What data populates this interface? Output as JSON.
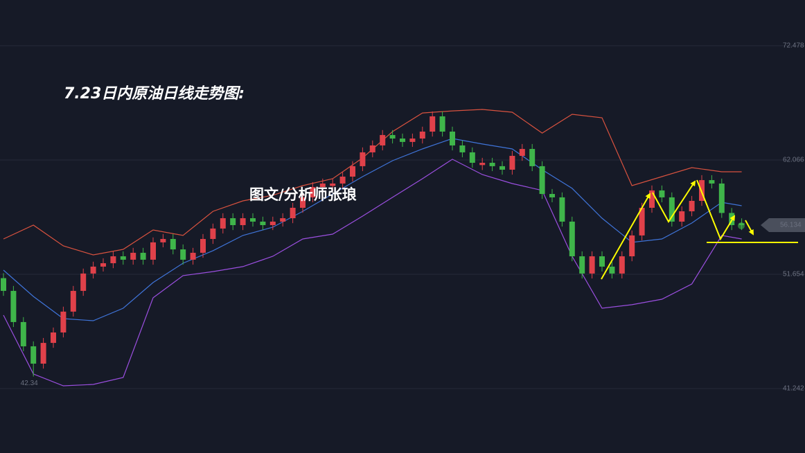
{
  "chart_data": {
    "type": "candlestick",
    "title": "7.23日内原油日线走势图:",
    "subtitle": "图文/分析师张琅",
    "categories": [
      null,
      null,
      null,
      null,
      null,
      null,
      null,
      null,
      null,
      null,
      null,
      null,
      null,
      null,
      null,
      null,
      null,
      null,
      null,
      null,
      null,
      null,
      null,
      null,
      null,
      null,
      null,
      null,
      null,
      null,
      null,
      null,
      null,
      null,
      null,
      null,
      null,
      null,
      null,
      null,
      null,
      null,
      null,
      null,
      null,
      null,
      null,
      null,
      null,
      null,
      null,
      null,
      null,
      null,
      null,
      null,
      null,
      null,
      null,
      null,
      null,
      null,
      null,
      null,
      null,
      null,
      null,
      null,
      null,
      null,
      null,
      null,
      null,
      null,
      null
    ],
    "open": [
      51.3,
      50.14,
      47.3,
      45.09,
      43.51,
      45.4,
      46.35,
      48.25,
      50.14,
      51.72,
      52.35,
      52.66,
      53.29,
      52.98,
      53.61,
      52.98,
      54.56,
      54.87,
      53.92,
      52.98,
      53.61,
      54.87,
      55.82,
      56.76,
      56.13,
      56.76,
      56.45,
      56.13,
      56.45,
      56.76,
      57.71,
      58.66,
      59.6,
      59.7,
      59.92,
      60.55,
      61.5,
      62.76,
      63.39,
      64.34,
      64.02,
      63.71,
      64.02,
      64.65,
      66.04,
      64.65,
      63.39,
      62.76,
      61.6,
      61.81,
      61.5,
      61.18,
      62.44,
      63.07,
      61.5,
      58.97,
      58.66,
      56.45,
      53.29,
      51.72,
      53.29,
      52.35,
      51.72,
      53.29,
      55.19,
      57.71,
      59.29,
      58.66,
      56.45,
      57.39,
      58.34,
      60.23,
      59.92,
      57.24,
      56.3
    ],
    "high": [
      51.75,
      50.59,
      47.75,
      45.54,
      45.85,
      46.8,
      48.7,
      50.59,
      52.17,
      52.8,
      53.11,
      53.74,
      53.74,
      54.06,
      54.06,
      55.01,
      55.32,
      55.32,
      54.37,
      54.06,
      55.32,
      56.27,
      57.21,
      57.21,
      57.21,
      57.21,
      56.9,
      56.9,
      57.21,
      58.16,
      59.11,
      60.05,
      60.37,
      60.37,
      61.0,
      61.95,
      63.21,
      63.84,
      64.79,
      64.79,
      64.47,
      64.47,
      65.1,
      66.49,
      66.49,
      65.1,
      63.84,
      63.21,
      62.26,
      62.26,
      61.95,
      62.89,
      63.52,
      63.52,
      61.95,
      59.42,
      59.11,
      56.9,
      53.74,
      53.74,
      53.74,
      52.8,
      53.74,
      55.64,
      58.16,
      59.74,
      59.74,
      59.11,
      57.84,
      58.79,
      60.68,
      60.68,
      60.37,
      57.69,
      56.75
    ],
    "low": [
      49.69,
      46.85,
      44.64,
      42.34,
      43.06,
      44.95,
      45.9,
      47.8,
      49.69,
      51.27,
      51.9,
      52.21,
      52.53,
      52.53,
      52.53,
      52.53,
      54.11,
      53.47,
      52.53,
      52.53,
      53.16,
      54.42,
      55.37,
      55.68,
      55.68,
      56.0,
      55.68,
      55.68,
      56.0,
      56.31,
      57.26,
      58.21,
      59.15,
      59.25,
      59.47,
      60.1,
      61.05,
      62.31,
      62.94,
      63.57,
      63.26,
      63.26,
      63.57,
      64.2,
      64.2,
      62.94,
      62.31,
      61.36,
      61.15,
      61.05,
      60.73,
      60.73,
      61.99,
      61.05,
      58.52,
      58.21,
      56.0,
      52.84,
      51.27,
      51.27,
      51.9,
      51.27,
      51.27,
      52.84,
      54.74,
      57.26,
      58.21,
      56.0,
      56.0,
      56.94,
      57.89,
      59.47,
      56.79,
      55.68,
      55.68
    ],
    "close": [
      50.14,
      47.3,
      45.09,
      43.51,
      45.4,
      46.35,
      48.25,
      50.14,
      51.72,
      52.35,
      52.66,
      53.29,
      52.98,
      53.61,
      52.98,
      54.56,
      54.87,
      53.92,
      52.98,
      53.61,
      54.87,
      55.82,
      56.76,
      56.13,
      56.76,
      56.45,
      56.13,
      56.45,
      56.76,
      57.71,
      58.66,
      59.6,
      59.92,
      59.92,
      60.55,
      61.5,
      62.76,
      63.39,
      64.34,
      64.02,
      63.71,
      64.02,
      64.65,
      66.04,
      64.65,
      63.39,
      62.76,
      61.81,
      61.81,
      61.5,
      61.18,
      62.44,
      63.07,
      61.5,
      58.97,
      58.66,
      56.45,
      53.29,
      51.72,
      53.29,
      52.35,
      51.72,
      53.29,
      55.19,
      57.71,
      59.29,
      58.66,
      56.45,
      57.39,
      58.34,
      60.23,
      59.92,
      57.24,
      56.13,
      56.134
    ],
    "up_color": "#e0414a",
    "down_color": "#3fb54a",
    "bands": [
      {
        "color": "#d9523f",
        "x": [
          0,
          3,
          6,
          9,
          12,
          15,
          18,
          21,
          24,
          27,
          30,
          33,
          36,
          39,
          42,
          45,
          48,
          51,
          54,
          57,
          60,
          63,
          66,
          69,
          72,
          74
        ],
        "values": [
          54.87,
          56.13,
          54.24,
          53.42,
          53.92,
          55.69,
          55.19,
          57.39,
          58.34,
          58.85,
          59.73,
          60.36,
          62.25,
          64.65,
          66.35,
          66.54,
          66.67,
          66.42,
          64.52,
          66.23,
          65.91,
          59.73,
          60.55,
          61.37,
          60.99,
          60.99
        ]
      },
      {
        "color": "#3f74d9",
        "x": [
          0,
          3,
          6,
          9,
          12,
          15,
          18,
          21,
          24,
          27,
          30,
          33,
          36,
          39,
          42,
          45,
          48,
          51,
          54,
          57,
          60,
          63,
          66,
          69,
          72,
          74
        ],
        "values": [
          52.03,
          49.63,
          47.61,
          47.42,
          48.56,
          50.9,
          52.66,
          53.8,
          55.19,
          55.94,
          57.39,
          58.97,
          60.55,
          62.0,
          63.07,
          64.02,
          63.52,
          63.07,
          61.18,
          59.48,
          56.76,
          54.56,
          54.87,
          56.32,
          58.21,
          57.9
        ]
      },
      {
        "color": "#9b4fe0",
        "x": [
          0,
          3,
          6,
          9,
          12,
          15,
          18,
          21,
          24,
          27,
          30,
          33,
          36,
          39,
          42,
          45,
          48,
          51,
          54,
          57,
          60,
          63,
          66,
          69,
          72,
          74
        ],
        "values": [
          47.93,
          42.57,
          41.49,
          41.62,
          42.25,
          49.51,
          51.53,
          51.9,
          52.35,
          53.29,
          54.87,
          55.31,
          56.95,
          58.66,
          60.36,
          62.13,
          60.74,
          59.92,
          59.29,
          53.29,
          48.56,
          48.88,
          49.38,
          50.77,
          55.19,
          54.87
        ]
      }
    ],
    "low_label": 42.34,
    "last_price": 56.134,
    "ylim": [
      35.37,
      76.64
    ],
    "yticks": [
      72.478,
      62.066,
      51.654,
      41.242
    ],
    "grid": true
  }
}
